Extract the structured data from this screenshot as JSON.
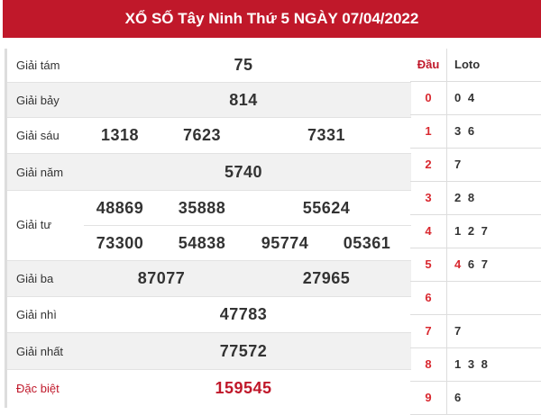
{
  "title": "XỔ SỐ Tây Ninh Thứ 5 NGÀY 07/04/2022",
  "prizes": {
    "g8": {
      "label": "Giải tám",
      "nums": [
        "75"
      ]
    },
    "g7": {
      "label": "Giải bảy",
      "nums": [
        "814"
      ]
    },
    "g6": {
      "label": "Giải sáu",
      "nums": [
        "1318",
        "7623",
        "7331"
      ]
    },
    "g5": {
      "label": "Giải năm",
      "nums": [
        "5740"
      ]
    },
    "g4": {
      "label": "Giải tư",
      "nums": [
        "48869",
        "35888",
        "55624",
        "73300",
        "54838",
        "95774",
        "05361"
      ]
    },
    "g3": {
      "label": "Giải ba",
      "nums": [
        "87077",
        "27965"
      ]
    },
    "g2": {
      "label": "Giải nhì",
      "nums": [
        "47783"
      ]
    },
    "g1": {
      "label": "Giải nhất",
      "nums": [
        "77572"
      ]
    },
    "db": {
      "label": "Đặc biệt",
      "nums": [
        "159545"
      ]
    }
  },
  "loto": {
    "head_label": "Đầu",
    "loto_label": "Loto",
    "rows": [
      {
        "d": "0",
        "pre": "",
        "l": "0 4"
      },
      {
        "d": "1",
        "pre": "",
        "l": "3 6"
      },
      {
        "d": "2",
        "pre": "",
        "l": "7"
      },
      {
        "d": "3",
        "pre": "",
        "l": "2 8"
      },
      {
        "d": "4",
        "pre": "",
        "l": "1 2 7"
      },
      {
        "d": "5",
        "pre": "4",
        "l": " 6 7"
      },
      {
        "d": "6",
        "pre": "",
        "l": ""
      },
      {
        "d": "7",
        "pre": "",
        "l": "7"
      },
      {
        "d": "8",
        "pre": "",
        "l": "1 3 8"
      },
      {
        "d": "9",
        "pre": "",
        "l": "6"
      }
    ]
  },
  "colors": {
    "brand": "#c0182a",
    "head_digit": "#d9282f"
  }
}
